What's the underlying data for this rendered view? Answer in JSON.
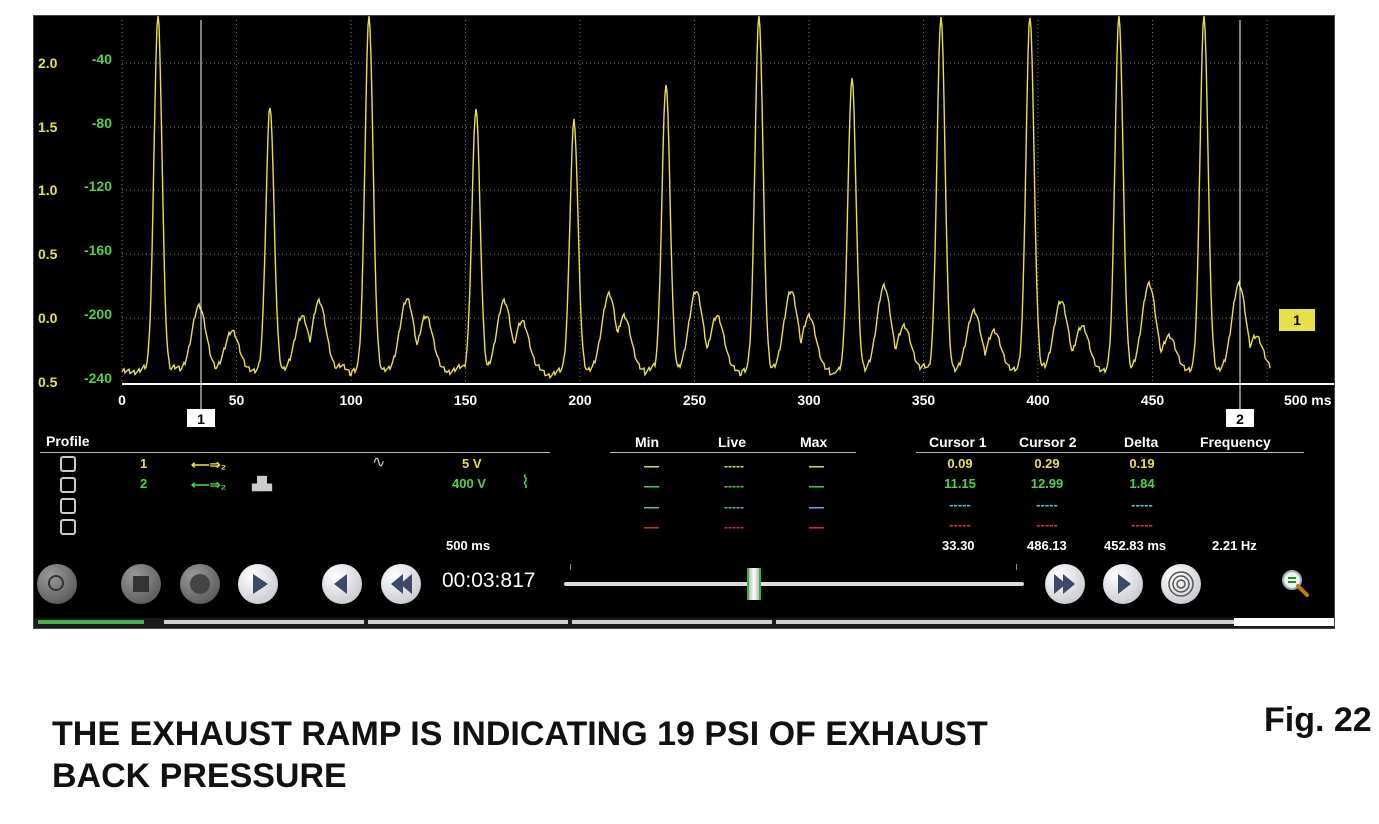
{
  "scope": {
    "y_axis_1": {
      "ticks": [
        "2.0",
        "1.5",
        "1.0",
        "0.5",
        "0.0",
        "0.5"
      ],
      "color": "#e8e04a"
    },
    "y_axis_2": {
      "ticks": [
        "-40",
        "-80",
        "-120",
        "-160",
        "-200",
        "-240"
      ],
      "color": "#4fd34a"
    },
    "x_axis": {
      "ticks": [
        "0",
        "50",
        "100",
        "150",
        "200",
        "250",
        "300",
        "350",
        "400",
        "450"
      ],
      "end_label": "500 ms"
    },
    "cursor_1_label": "1",
    "cursor_2_label": "2",
    "trace_marker_label": "1",
    "trace_color": "#e8e04a"
  },
  "profile": {
    "header": "Profile",
    "channels": [
      {
        "number": "1",
        "scale": "5 V",
        "color": "#e8e04a"
      },
      {
        "number": "2",
        "scale": "400 V",
        "color": "#4fd34a"
      }
    ],
    "timebase": "500 ms"
  },
  "stats": {
    "headers": [
      "Min",
      "Live",
      "Max"
    ],
    "rows": [
      {
        "color": "#e8e04a",
        "min": "-----",
        "live": "-----",
        "max": "-----"
      },
      {
        "color": "#4fd34a",
        "min": "-----",
        "live": "-----",
        "max": "-----"
      },
      {
        "color": "#3fc8d8",
        "min": "-----",
        "live": "-----",
        "max": "-----"
      },
      {
        "color": "#e03030",
        "min": "-----",
        "live": "-----",
        "max": "-----"
      }
    ]
  },
  "cursors": {
    "headers": [
      "Cursor 1",
      "Cursor 2",
      "Delta",
      "Frequency"
    ],
    "rows": [
      {
        "color": "#e8e04a",
        "c1": "0.09",
        "c2": "0.29",
        "delta": "0.19"
      },
      {
        "color": "#4fd34a",
        "c1": "11.15",
        "c2": "12.99",
        "delta": "1.84"
      },
      {
        "color": "#3fc8d8",
        "c1": "-----",
        "c2": "-----",
        "delta": "-----"
      },
      {
        "color": "#e03030",
        "c1": "-----",
        "c2": "-----",
        "delta": "-----"
      }
    ],
    "time_row": {
      "c1": "33.30",
      "c2": "486.13",
      "delta": "452.83 ms",
      "frequency": "2.21 Hz"
    }
  },
  "playback": {
    "time": "00:03:817",
    "position": 0.41
  },
  "caption": {
    "line1": "THE EXHAUST RAMP IS INDICATING 19 PSI OF EXHAUST",
    "line2": "BACK PRESSURE",
    "figure": "Fig. 22"
  }
}
